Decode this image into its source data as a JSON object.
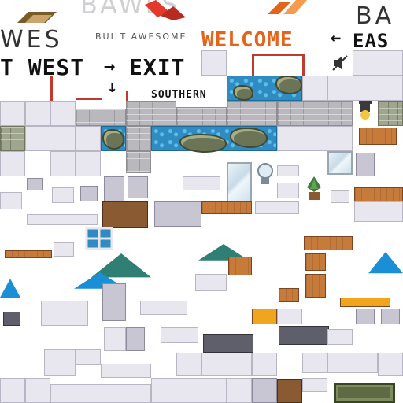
{
  "signs": {
    "west": "WES",
    "brand_tagline": "BUILT AWESOME",
    "brand_name": "BAWLS",
    "welcome": "WELCOME",
    "east_top": "BA",
    "east": "EAS",
    "west_exit": "T WEST",
    "exit": "EXIT",
    "southern": "SOUTHERN",
    "arrow_right": "→",
    "arrow_left": "←",
    "arrow_down": "↓"
  },
  "colors": {
    "welcome_orange": "#e3651c",
    "brand_brown": "#7b5a2a",
    "brand_red": "#e2392b",
    "sign_black": "#111111",
    "water_blue": "#2f8bc2",
    "umbrella_teal": "#2f7f74",
    "umbrella_blue": "#1b8fd6"
  },
  "icons": [
    "speaker-muted-icon",
    "lamp-icon",
    "plant-icon",
    "monitor-icon",
    "umbrella-icon",
    "chair-icon",
    "window-icon"
  ]
}
